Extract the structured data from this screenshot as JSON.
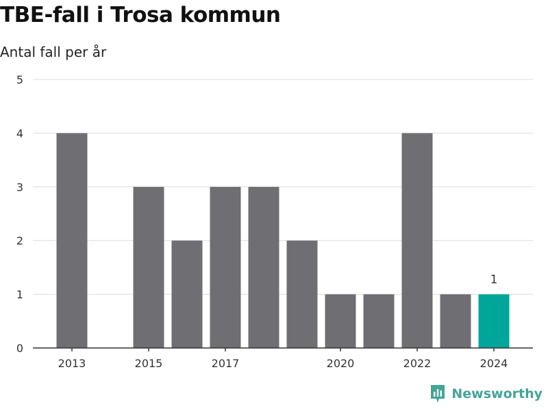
{
  "title": "TBE-fall i Trosa kommun",
  "subtitle": "Antal fall per år",
  "brand": {
    "name": "Newsworthy",
    "color": "#43a598"
  },
  "colors": {
    "bar": "#6f6e73",
    "highlight": "#00a69a",
    "grid": "#dcdcdc",
    "axis": "#333333"
  },
  "chart_data": {
    "type": "bar",
    "categories": [
      2013,
      2014,
      2015,
      2016,
      2017,
      2018,
      2019,
      2020,
      2021,
      2022,
      2023,
      2024
    ],
    "values": [
      4,
      0,
      3,
      2,
      3,
      3,
      2,
      1,
      1,
      4,
      1,
      1
    ],
    "highlight": [
      2024
    ],
    "data_labels": [
      {
        "category": 2024,
        "text": "1"
      }
    ],
    "x_tick_labels": [
      "2013",
      "2015",
      "2017",
      "2020",
      "2022",
      "2024"
    ],
    "y_ticks": [
      0,
      1,
      2,
      3,
      4,
      5
    ],
    "ylim": [
      0,
      5
    ],
    "grid": true,
    "title": "TBE-fall i Trosa kommun",
    "subtitle": "Antal fall per år",
    "xlabel": "",
    "ylabel": ""
  }
}
